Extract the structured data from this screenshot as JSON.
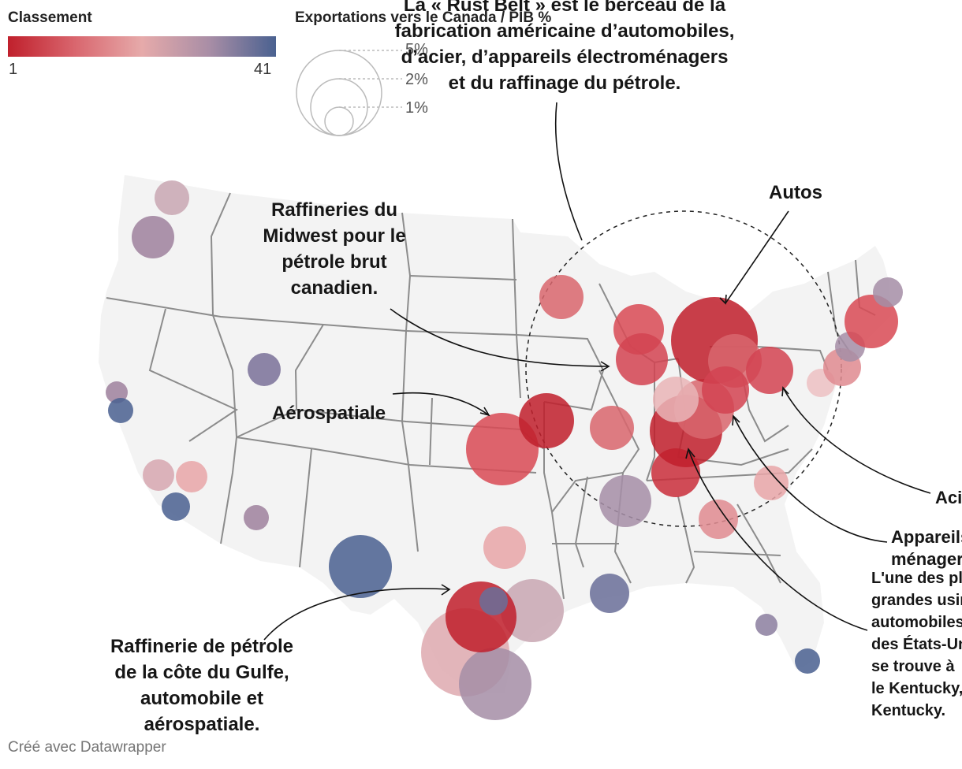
{
  "legend": {
    "color_title": "Classement",
    "color_min": "1",
    "color_max": "41",
    "size_title": "Exportations vers le Canada / PIB %",
    "size_labels": [
      "5%",
      "2%",
      "1%"
    ]
  },
  "annotations": {
    "rust_belt": [
      "La « Rust Belt » est le berceau de la",
      "fabrication américaine d’automobiles,",
      "d’acier, d’appareils électroménagers",
      "et du raffinage du pétrole."
    ],
    "autos": "Autos",
    "midwest": [
      "Raffineries du",
      "Midwest pour le",
      "pétrole brut",
      "canadien."
    ],
    "aerospace": "Aérospatiale",
    "acier": "Acier",
    "appareils": [
      "Appareils",
      "ménagers"
    ],
    "kentucky": [
      "L'une des plus",
      "grandes usines",
      "automobiles",
      "des États-Unis",
      "se trouve à",
      "le Kentucky,",
      "Kentucky."
    ],
    "gulf": [
      "Raffinerie de pétrole",
      "de la côte du Gulfe,",
      "automobile et",
      "aérospatiale."
    ]
  },
  "colors": {
    "rank_1": "#c0202c",
    "rank_mid": "#e6aaaa",
    "rank_41": "#4a6190",
    "land": "#f3f3f3",
    "border": "#8c8c8c"
  },
  "footer": "Créé avec Datawrapper"
}
